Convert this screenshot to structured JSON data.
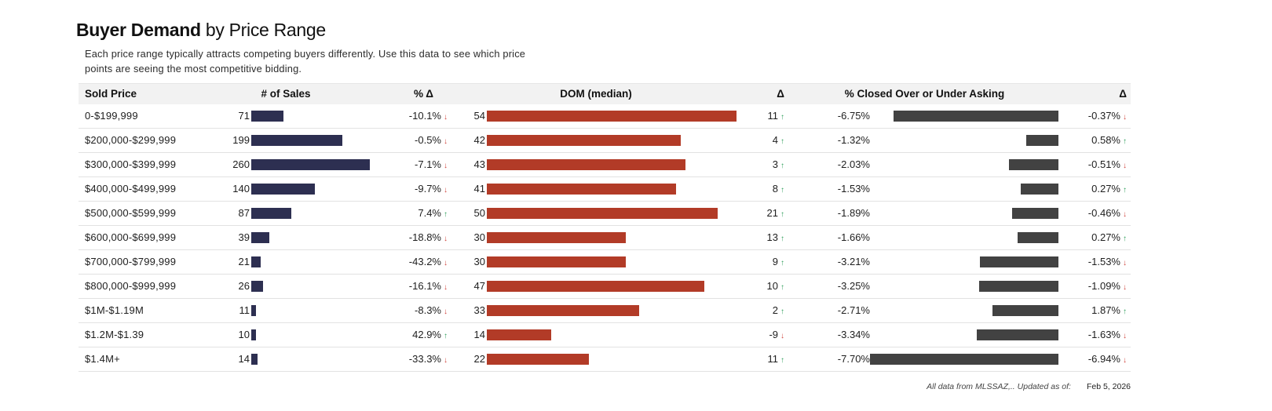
{
  "title": {
    "bold": "Buyer Demand",
    "rest": " by Price Range"
  },
  "subtitle": "Each price range typically attracts competing buyers differently.  Use this data to see which price points are seeing the most competitive bidding.",
  "columns": {
    "sold_price": "Sold Price",
    "num_sales": "# of Sales",
    "pct_delta": "% Δ",
    "dom": "DOM (median)",
    "delta": "Δ",
    "closed": "% Closed Over or Under Asking",
    "delta2": "Δ"
  },
  "glyphs": {
    "up_arrow": "↑",
    "down_arrow": "↓"
  },
  "colors": {
    "navy_bar": "#2d2f51",
    "rust_bar": "#b23b27",
    "gray_bar": "#424242",
    "green_arrow": "#2e9e5b",
    "red_arrow": "#d0453e",
    "header_bg": "#f2f2f2"
  },
  "rows": [
    {
      "price": "0-$199,999",
      "sales": "71",
      "pct": "-10.1%",
      "pct_dir": "down",
      "dom": "54",
      "delta": "11",
      "delta_dir": "up",
      "closed": "-6.75%",
      "closed2": "-0.37%",
      "closed2_dir": "down"
    },
    {
      "price": "$200,000-$299,999",
      "sales": "199",
      "pct": "-0.5%",
      "pct_dir": "down",
      "dom": "42",
      "delta": "4",
      "delta_dir": "up",
      "closed": "-1.32%",
      "closed2": "0.58%",
      "closed2_dir": "up"
    },
    {
      "price": "$300,000-$399,999",
      "sales": "260",
      "pct": "-7.1%",
      "pct_dir": "down",
      "dom": "43",
      "delta": "3",
      "delta_dir": "up",
      "closed": "-2.03%",
      "closed2": "-0.51%",
      "closed2_dir": "down"
    },
    {
      "price": "$400,000-$499,999",
      "sales": "140",
      "pct": "-9.7%",
      "pct_dir": "down",
      "dom": "41",
      "delta": "8",
      "delta_dir": "up",
      "closed": "-1.53%",
      "closed2": "0.27%",
      "closed2_dir": "up"
    },
    {
      "price": "$500,000-$599,999",
      "sales": "87",
      "pct": "7.4%",
      "pct_dir": "up",
      "dom": "50",
      "delta": "21",
      "delta_dir": "up",
      "closed": "-1.89%",
      "closed2": "-0.46%",
      "closed2_dir": "down"
    },
    {
      "price": "$600,000-$699,999",
      "sales": "39",
      "pct": "-18.8%",
      "pct_dir": "down",
      "dom": "30",
      "delta": "13",
      "delta_dir": "up",
      "closed": "-1.66%",
      "closed2": "0.27%",
      "closed2_dir": "up"
    },
    {
      "price": "$700,000-$799,999",
      "sales": "21",
      "pct": "-43.2%",
      "pct_dir": "down",
      "dom": "30",
      "delta": "9",
      "delta_dir": "up",
      "closed": "-3.21%",
      "closed2": "-1.53%",
      "closed2_dir": "down"
    },
    {
      "price": "$800,000-$999,999",
      "sales": "26",
      "pct": "-16.1%",
      "pct_dir": "down",
      "dom": "47",
      "delta": "10",
      "delta_dir": "up",
      "closed": "-3.25%",
      "closed2": "-1.09%",
      "closed2_dir": "down"
    },
    {
      "price": "$1M-$1.19M",
      "sales": "11",
      "pct": "-8.3%",
      "pct_dir": "down",
      "dom": "33",
      "delta": "2",
      "delta_dir": "up",
      "closed": "-2.71%",
      "closed2": "1.87%",
      "closed2_dir": "up"
    },
    {
      "price": "$1.2M-$1.39",
      "sales": "10",
      "pct": "42.9%",
      "pct_dir": "up",
      "dom": "14",
      "delta": "-9",
      "delta_dir": "down",
      "closed": "-3.34%",
      "closed2": "-1.63%",
      "closed2_dir": "down"
    },
    {
      "price": "$1.4M+",
      "sales": "14",
      "pct": "-33.3%",
      "pct_dir": "down",
      "dom": "22",
      "delta": "11",
      "delta_dir": "up",
      "closed": "-7.70%",
      "closed2": "-6.94%",
      "closed2_dir": "down"
    }
  ],
  "footer": {
    "note": "All data from MLSSAZ,.. Updated as of:",
    "date": "Feb 5, 2026"
  },
  "chart_data": {
    "type": "table",
    "title": "Buyer Demand by Price Range",
    "categories": [
      "0-$199,999",
      "$200,000-$299,999",
      "$300,000-$399,999",
      "$400,000-$499,999",
      "$500,000-$599,999",
      "$600,000-$699,999",
      "$700,000-$799,999",
      "$800,000-$999,999",
      "$1M-$1.19M",
      "$1.2M-$1.39",
      "$1.4M+"
    ],
    "series": [
      {
        "name": "# of Sales",
        "values": [
          71,
          199,
          260,
          140,
          87,
          39,
          21,
          26,
          11,
          10,
          14
        ]
      },
      {
        "name": "% Δ (sales)",
        "values": [
          -10.1,
          -0.5,
          -7.1,
          -9.7,
          7.4,
          -18.8,
          -43.2,
          -16.1,
          -8.3,
          42.9,
          -33.3
        ]
      },
      {
        "name": "DOM (median)",
        "values": [
          54,
          42,
          43,
          41,
          50,
          30,
          30,
          47,
          33,
          14,
          22
        ]
      },
      {
        "name": "Δ (DOM)",
        "values": [
          11,
          4,
          3,
          8,
          21,
          13,
          9,
          10,
          2,
          -9,
          11
        ]
      },
      {
        "name": "% Closed Over or Under Asking",
        "values": [
          -6.75,
          -1.32,
          -2.03,
          -1.53,
          -1.89,
          -1.66,
          -3.21,
          -3.25,
          -2.71,
          -3.34,
          -7.7
        ]
      },
      {
        "name": "Δ (% Closed)",
        "values": [
          -0.37,
          0.58,
          -0.51,
          0.27,
          -0.46,
          0.27,
          -1.53,
          -1.09,
          1.87,
          -1.63,
          -6.94
        ]
      }
    ],
    "bar_style": {
      "sales_color": "#2d2f51",
      "dom_color": "#b23b27",
      "closed_color": "#424242"
    },
    "bar_max": {
      "sales": 260,
      "dom": 54,
      "closed_abs": 7.7
    }
  }
}
